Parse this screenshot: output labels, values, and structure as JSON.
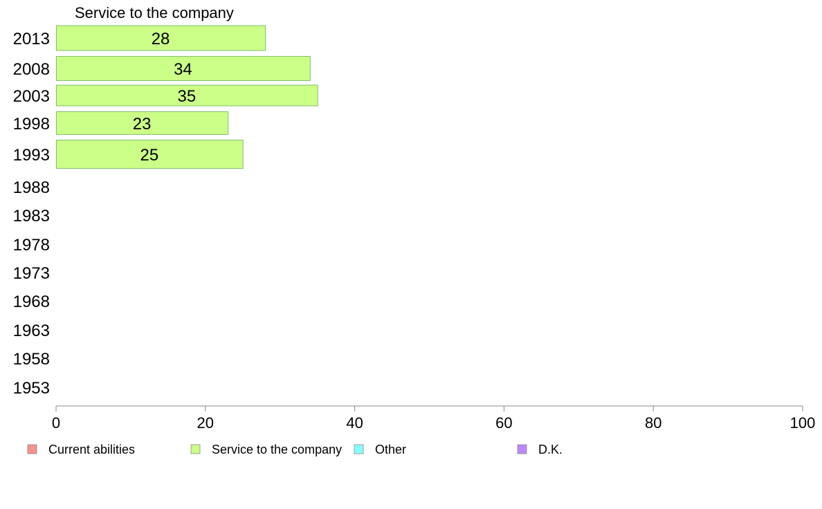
{
  "chart_data": {
    "type": "bar",
    "orientation": "horizontal",
    "title": "Service to the company",
    "categories": [
      "2013",
      "2008",
      "2003",
      "1998",
      "1993",
      "1988",
      "1983",
      "1978",
      "1973",
      "1968",
      "1963",
      "1958",
      "1953"
    ],
    "series": [
      {
        "name": "Service to the company",
        "values": [
          28,
          34,
          35,
          23,
          25,
          null,
          null,
          null,
          null,
          null,
          null,
          null,
          null
        ]
      }
    ],
    "value_labels": [
      "28",
      "34",
      "35",
      "23",
      "25"
    ],
    "xlim": [
      0,
      100
    ],
    "xticks": [
      0,
      20,
      40,
      60,
      80,
      100
    ],
    "legend": {
      "placement": "bottom",
      "items": [
        {
          "label": "Current abilities",
          "color": "#f7928f"
        },
        {
          "label": "Service to the company",
          "color": "#ccff88"
        },
        {
          "label": "Other",
          "color": "#88ffff"
        },
        {
          "label": "D.K.",
          "color": "#bb88ff"
        }
      ]
    },
    "bar_color": "#ccff88",
    "axis_color": "#888888"
  }
}
